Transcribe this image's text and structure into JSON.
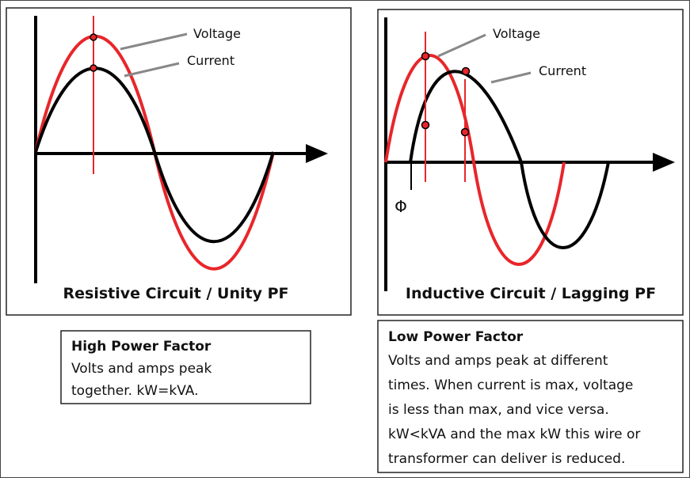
{
  "left_panel": {
    "voltage_label": "Voltage",
    "current_label": "Current",
    "title": "Resistive Circuit / Unity PF"
  },
  "right_panel": {
    "voltage_label": "Voltage",
    "current_label": "Current",
    "phase_symbol": "Φ",
    "title": "Inductive Circuit / Lagging PF"
  },
  "left_note": {
    "heading": "High Power Factor",
    "lines": [
      "Volts and amps peak",
      "together.  kW=kVA."
    ]
  },
  "right_note": {
    "heading": "Low Power Factor",
    "lines": [
      "Volts and amps peak at different",
      "times.  When current is max, voltage",
      "is less than max, and vice versa.",
      "kW<kVA and the max kW this wire or",
      "transformer can deliver is reduced."
    ]
  }
}
